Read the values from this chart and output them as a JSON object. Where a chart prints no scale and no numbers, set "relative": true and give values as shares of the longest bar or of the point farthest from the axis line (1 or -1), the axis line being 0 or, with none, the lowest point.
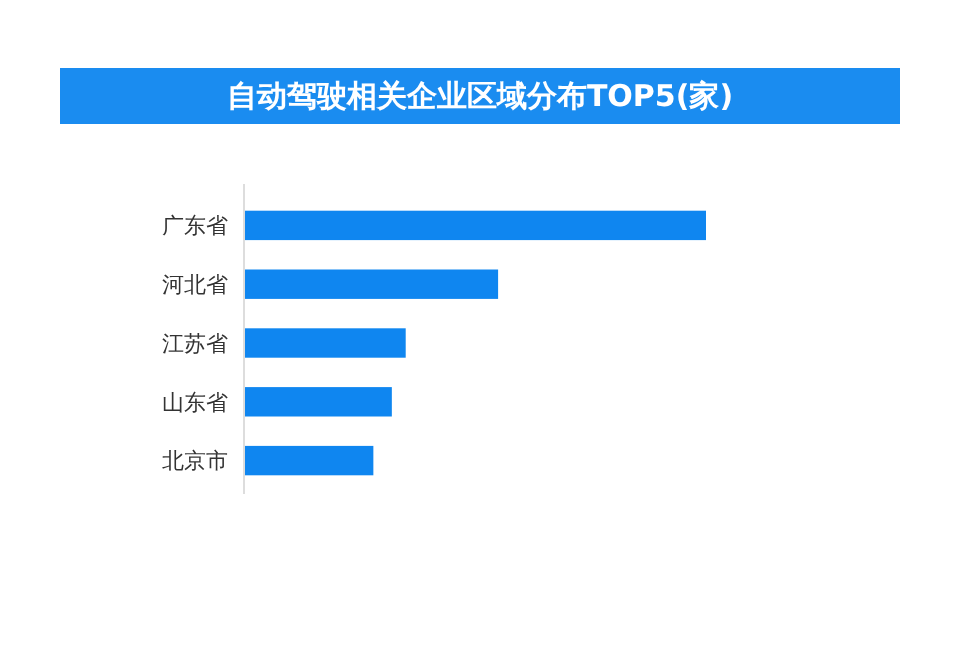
{
  "chart_data": {
    "type": "bar",
    "orientation": "horizontal",
    "relative": true,
    "title": "自动驾驶相关企业区域分布TOP5(家)",
    "categories": [
      "广东省",
      "河北省",
      "江苏省",
      "山东省",
      "北京市"
    ],
    "values": [
      1,
      0.55,
      0.35,
      0.32,
      0.28
    ],
    "color": "#0f86f0"
  }
}
